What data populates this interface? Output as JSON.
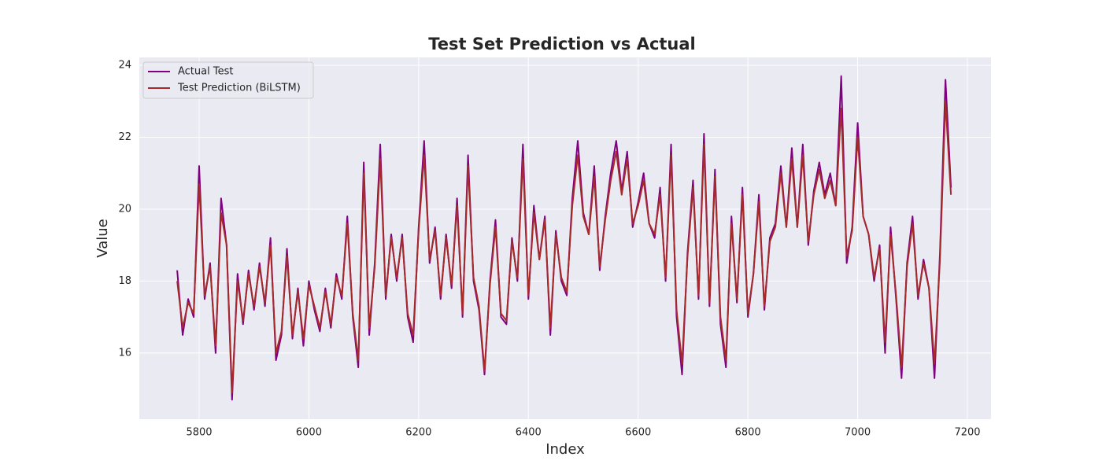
{
  "chart_data": {
    "type": "line",
    "title": "Test Set Prediction vs Actual",
    "x_label": "Index",
    "y_label": "Value",
    "x": [
      5760,
      5770,
      5780,
      5790,
      5800,
      5810,
      5820,
      5830,
      5840,
      5850,
      5860,
      5870,
      5880,
      5890,
      5900,
      5910,
      5920,
      5930,
      5940,
      5950,
      5960,
      5970,
      5980,
      5990,
      6000,
      6010,
      6020,
      6030,
      6040,
      6050,
      6060,
      6070,
      6080,
      6090,
      6100,
      6110,
      6120,
      6130,
      6140,
      6150,
      6160,
      6170,
      6180,
      6190,
      6200,
      6210,
      6220,
      6230,
      6240,
      6250,
      6260,
      6270,
      6280,
      6290,
      6300,
      6310,
      6320,
      6330,
      6340,
      6350,
      6360,
      6370,
      6380,
      6390,
      6400,
      6410,
      6420,
      6430,
      6440,
      6450,
      6460,
      6470,
      6480,
      6490,
      6500,
      6510,
      6520,
      6530,
      6540,
      6550,
      6560,
      6570,
      6580,
      6590,
      6600,
      6610,
      6620,
      6630,
      6640,
      6650,
      6660,
      6670,
      6680,
      6690,
      6700,
      6710,
      6720,
      6730,
      6740,
      6750,
      6760,
      6770,
      6780,
      6790,
      6800,
      6810,
      6820,
      6830,
      6840,
      6850,
      6860,
      6870,
      6880,
      6890,
      6900,
      6910,
      6920,
      6930,
      6940,
      6950,
      6960,
      6970,
      6980,
      6990,
      7000,
      7010,
      7020,
      7030,
      7040,
      7050,
      7060,
      7070,
      7080,
      7090,
      7100,
      7110,
      7120,
      7130,
      7140,
      7150,
      7160,
      7170
    ],
    "series": [
      {
        "name": "Actual Test",
        "color": "#800080",
        "values": [
          18.3,
          16.5,
          17.5,
          17.0,
          21.2,
          17.5,
          18.5,
          16.0,
          20.3,
          19.0,
          14.7,
          18.2,
          16.8,
          18.3,
          17.2,
          18.5,
          17.3,
          19.2,
          15.8,
          16.5,
          18.9,
          16.4,
          17.8,
          16.2,
          18.0,
          17.2,
          16.6,
          17.8,
          16.7,
          18.2,
          17.5,
          19.8,
          17.0,
          15.6,
          21.3,
          16.5,
          18.5,
          21.8,
          17.5,
          19.3,
          18.0,
          19.3,
          17.0,
          16.3,
          19.5,
          21.9,
          18.5,
          19.5,
          17.5,
          19.3,
          17.8,
          20.3,
          17.0,
          21.5,
          18.0,
          17.2,
          15.4,
          18.0,
          19.7,
          17.0,
          16.8,
          19.2,
          18.0,
          21.8,
          17.5,
          20.1,
          18.6,
          19.8,
          16.5,
          19.4,
          18.0,
          17.6,
          20.3,
          21.9,
          19.9,
          19.3,
          21.2,
          18.3,
          19.8,
          21.0,
          21.9,
          20.5,
          21.6,
          19.5,
          20.2,
          21.0,
          19.6,
          19.2,
          20.6,
          18.0,
          21.8,
          17.0,
          15.4,
          18.8,
          20.8,
          17.5,
          22.1,
          17.3,
          21.1,
          16.8,
          15.6,
          19.8,
          17.4,
          20.6,
          17.0,
          18.2,
          20.4,
          17.2,
          19.2,
          19.6,
          21.2,
          19.5,
          21.7,
          19.5,
          21.8,
          19.0,
          20.5,
          21.3,
          20.4,
          21.0,
          20.1,
          23.7,
          18.5,
          19.5,
          22.4,
          19.8,
          19.3,
          18.0,
          19.0,
          16.0,
          19.5,
          17.5,
          15.3,
          18.5,
          19.8,
          17.5,
          18.6,
          17.8,
          15.3,
          18.8,
          23.6,
          20.6
        ]
      },
      {
        "name": "Test Prediction (BiLSTM)",
        "color": "#a52a2a",
        "values": [
          18.0,
          16.7,
          17.4,
          17.1,
          20.7,
          17.6,
          18.4,
          16.2,
          19.9,
          19.0,
          14.9,
          18.0,
          16.9,
          18.2,
          17.3,
          18.4,
          17.4,
          19.0,
          16.0,
          16.6,
          18.7,
          16.5,
          17.7,
          16.4,
          17.9,
          17.3,
          16.7,
          17.7,
          16.8,
          18.1,
          17.6,
          19.6,
          17.1,
          15.8,
          21.0,
          16.7,
          18.4,
          21.4,
          17.6,
          19.2,
          18.1,
          19.2,
          17.1,
          16.5,
          19.4,
          21.5,
          18.6,
          19.4,
          17.6,
          19.2,
          17.9,
          20.1,
          17.1,
          21.2,
          18.1,
          17.3,
          15.5,
          17.9,
          19.5,
          17.1,
          16.9,
          19.1,
          18.1,
          21.4,
          17.6,
          19.9,
          18.6,
          19.7,
          16.7,
          19.3,
          18.1,
          17.7,
          20.1,
          21.5,
          19.8,
          19.3,
          20.9,
          18.4,
          19.7,
          20.8,
          21.6,
          20.4,
          21.4,
          19.6,
          20.1,
          20.8,
          19.6,
          19.3,
          20.4,
          18.1,
          21.5,
          17.2,
          15.7,
          18.7,
          20.6,
          17.6,
          21.8,
          17.4,
          20.9,
          17.0,
          15.8,
          19.6,
          17.5,
          20.4,
          17.1,
          18.2,
          20.2,
          17.3,
          19.1,
          19.5,
          21.0,
          19.5,
          21.4,
          19.5,
          21.5,
          19.1,
          20.4,
          21.1,
          20.3,
          20.8,
          20.1,
          22.8,
          18.7,
          19.4,
          22.0,
          19.8,
          19.3,
          18.1,
          18.9,
          16.3,
          19.3,
          17.6,
          15.6,
          18.4,
          19.6,
          17.6,
          18.5,
          17.8,
          15.7,
          18.6,
          23.0,
          20.4
        ]
      }
    ],
    "xlim": [
      5691,
      7243
    ],
    "xticks": [
      5800,
      6000,
      6200,
      6400,
      6600,
      6800,
      7000,
      7200
    ],
    "ylim": [
      14.16,
      24.22
    ],
    "yticks": [
      16,
      18,
      20,
      22,
      24
    ],
    "grid": true,
    "legend": "upper left"
  }
}
